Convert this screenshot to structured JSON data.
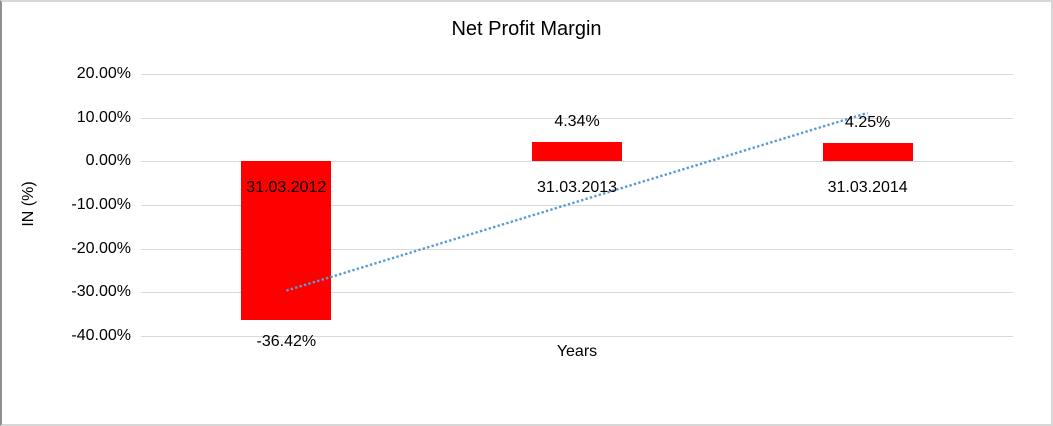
{
  "chart_data": {
    "type": "bar",
    "title": "Net Profit Margin",
    "xlabel": "Years",
    "ylabel": "IN (%)",
    "categories": [
      "31.03.2012",
      "31.03.2013",
      "31.03.2014"
    ],
    "values": [
      -36.42,
      4.34,
      4.25
    ],
    "data_labels": [
      "-36.42%",
      "4.34%",
      "4.25%"
    ],
    "ylim": [
      -40,
      20
    ],
    "ytick_step": 10,
    "ytick_labels": [
      "20.00%",
      "10.00%",
      "0.00%",
      "-10.00%",
      "-20.00%",
      "-30.00%",
      "-40.00%"
    ],
    "grid": true,
    "legend": "none",
    "bar_color": "#FF0000",
    "gridline_color": "#D9D9D9",
    "text_color": "#000000",
    "trendline": {
      "type": "linear",
      "style": "dotted",
      "color": "#5B9BD5",
      "start": {
        "category_index": 0,
        "value": -29.6
      },
      "end": {
        "category_index": 2,
        "value": 11.1
      }
    }
  }
}
